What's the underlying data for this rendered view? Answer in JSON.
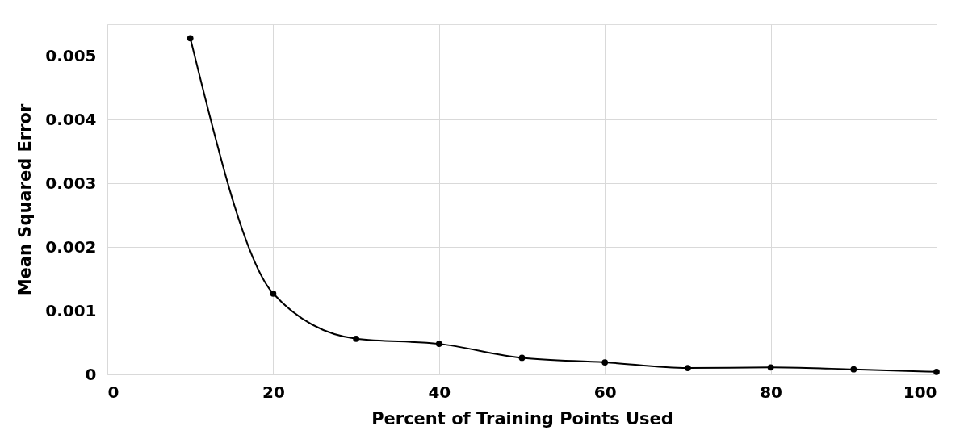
{
  "chart_data": {
    "type": "line",
    "xlabel": "Percent of Training Points Used",
    "ylabel": "Mean Squared Error",
    "x": [
      10,
      20,
      30,
      40,
      50,
      60,
      70,
      80,
      90,
      100
    ],
    "series": [
      {
        "color": "#000000",
        "values": [
          0.00528,
          0.00127,
          0.00056,
          0.00048,
          0.00026,
          0.00019,
          0.0001,
          0.00011,
          8e-05,
          4e-05
        ]
      }
    ],
    "xlim": [
      0,
      100
    ],
    "xticks": [
      0,
      20,
      40,
      60,
      80,
      100
    ],
    "ylim": [
      0,
      0.0055
    ],
    "yticks": [
      0,
      0.001,
      0.002,
      0.003,
      0.004,
      0.005
    ],
    "grid": true,
    "marker": "circle",
    "line_style": "solid"
  }
}
